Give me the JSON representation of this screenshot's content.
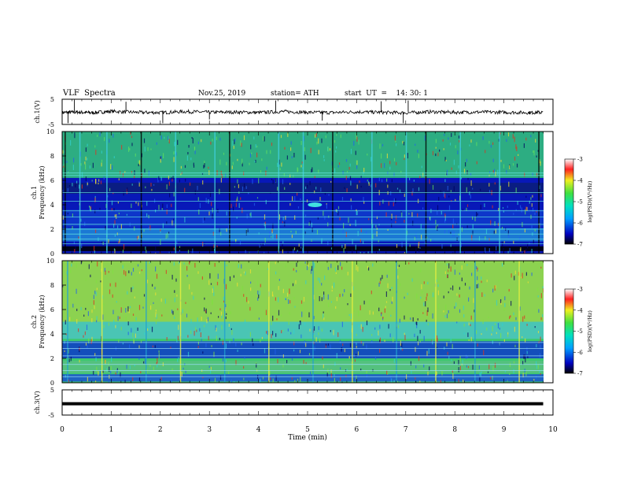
{
  "header": {
    "title": "VLF  Spectra",
    "date": "Nov.25, 2019",
    "station": "station= ATH",
    "start": "start  UT  =    14: 30: 1"
  },
  "chart_data": [
    {
      "type": "line",
      "panel": "ch1-waveform",
      "ylabel": "ch.1(V)",
      "ylim": [
        -5,
        5
      ],
      "yticks": [
        "5",
        "-5"
      ],
      "xlim": [
        0,
        10
      ],
      "trace_color": "#000000",
      "trace": [
        {
          "x": 0.0,
          "y": -0.3
        },
        {
          "x": 0.3,
          "y": -0.1
        },
        {
          "x": 0.6,
          "y": -0.4
        },
        {
          "x": 1.0,
          "y": 0.2
        },
        {
          "x": 1.5,
          "y": -0.2
        },
        {
          "x": 2.0,
          "y": -0.3
        },
        {
          "x": 2.5,
          "y": 0.1
        },
        {
          "x": 3.0,
          "y": -0.2
        },
        {
          "x": 3.5,
          "y": -0.1
        },
        {
          "x": 4.0,
          "y": -0.3
        },
        {
          "x": 4.5,
          "y": 0.1
        },
        {
          "x": 5.0,
          "y": -0.2
        },
        {
          "x": 5.5,
          "y": -0.3
        },
        {
          "x": 6.0,
          "y": 0.0
        },
        {
          "x": 6.5,
          "y": -0.2
        },
        {
          "x": 7.0,
          "y": -0.4
        },
        {
          "x": 7.5,
          "y": 0.0
        },
        {
          "x": 8.0,
          "y": -0.2
        },
        {
          "x": 8.5,
          "y": -0.1
        },
        {
          "x": 9.0,
          "y": -0.2
        },
        {
          "x": 9.5,
          "y": -0.3
        },
        {
          "x": 9.8,
          "y": -0.2
        }
      ],
      "spikes": [
        {
          "x": 0.12,
          "y": -4.5
        },
        {
          "x": 0.25,
          "y": 4.8
        },
        {
          "x": 1.3,
          "y": 4.0
        },
        {
          "x": 2.05,
          "y": -4.5
        },
        {
          "x": 3.0,
          "y": -3.0
        },
        {
          "x": 4.35,
          "y": 4.5
        },
        {
          "x": 5.3,
          "y": -3.5
        },
        {
          "x": 6.5,
          "y": 4.2
        },
        {
          "x": 6.95,
          "y": -4.5
        },
        {
          "x": 7.05,
          "y": 4.5
        }
      ]
    },
    {
      "type": "heatmap",
      "panel": "ch1-spectrogram",
      "ylabel": "ch.1\nFrequency (kHz)",
      "ylim": [
        0,
        10
      ],
      "yticks": [
        "0",
        "2",
        "4",
        "6",
        "8",
        "10"
      ],
      "xlim": [
        0,
        9.8
      ],
      "background": "#0818b8",
      "colorbar": {
        "label": "log(PSD)(V²/Hz)",
        "range": [
          -7,
          -3
        ],
        "ticks": [
          "-3",
          "-4",
          "-5",
          "-6",
          "-7"
        ]
      },
      "bands": [
        {
          "f0": 6.2,
          "f1": 10.0,
          "color": "#34c878"
        },
        {
          "f0": 4.9,
          "f1": 5.8,
          "color": "#0a1e78"
        },
        {
          "f0": 2.2,
          "f1": 3.6,
          "color": "#0e3ccc"
        },
        {
          "f0": 1.0,
          "f1": 2.1,
          "color": "#1e8ad8"
        },
        {
          "f0": 0.2,
          "f1": 0.6,
          "color": "#000000"
        }
      ],
      "lines_khz": [
        0.8,
        1.2,
        1.6,
        2.0,
        2.4,
        3.0,
        3.5,
        4.3,
        5.0,
        6.4,
        6.6
      ],
      "streaks_min": [
        0.05,
        0.35,
        0.9,
        1.6,
        2.3,
        3.1,
        3.4,
        4.4,
        4.9,
        5.5,
        6.3,
        7.0,
        7.4,
        8.1,
        8.9,
        9.7
      ],
      "spot": {
        "t": 5.15,
        "f": 4.0
      }
    },
    {
      "type": "heatmap",
      "panel": "ch2-spectrogram",
      "ylabel": "ch.2\nFrequency (kHz)",
      "ylim": [
        0,
        10
      ],
      "yticks": [
        "0",
        "2",
        "4",
        "6",
        "8",
        "10"
      ],
      "xlim": [
        0,
        9.8
      ],
      "background": "#3ec870",
      "colorbar": {
        "label": "log(PSD)(V²/Hz)",
        "range": [
          -7,
          -3
        ],
        "ticks": [
          "-3",
          "-4",
          "-5",
          "-6",
          "-7"
        ]
      },
      "bands": [
        {
          "f0": 5.0,
          "f1": 10.0,
          "color": "#9ad44a"
        },
        {
          "f0": 3.6,
          "f1": 5.0,
          "color": "#4cc4c0"
        },
        {
          "f0": 2.0,
          "f1": 3.4,
          "color": "#0c38c8"
        },
        {
          "f0": 0.8,
          "f1": 1.8,
          "color": "#58c080"
        },
        {
          "f0": 0.1,
          "f1": 0.7,
          "color": "#1a50d0"
        }
      ],
      "lines_khz": [
        0.5,
        1.0,
        1.5,
        2.2,
        2.8,
        3.3
      ],
      "streaks_min": [
        0.1,
        0.8,
        1.7,
        2.4,
        3.3,
        4.2,
        5.1,
        5.9,
        6.8,
        7.6,
        8.4,
        9.3
      ],
      "spot": null
    },
    {
      "type": "line",
      "panel": "ch3-waveform",
      "ylabel": "ch.3(V)",
      "ylim": [
        -5,
        5
      ],
      "yticks": [
        "5",
        "-5"
      ],
      "xlim": [
        0,
        10
      ],
      "trace_color": "#000000",
      "trace": [
        {
          "x": 0.0,
          "y": -0.5
        },
        {
          "x": 9.8,
          "y": -0.5
        }
      ]
    }
  ],
  "xaxis": {
    "label": "Time  (min)",
    "range": [
      0,
      10
    ],
    "ticks": [
      "0",
      "1",
      "2",
      "3",
      "4",
      "5",
      "6",
      "7",
      "8",
      "9",
      "10"
    ]
  }
}
